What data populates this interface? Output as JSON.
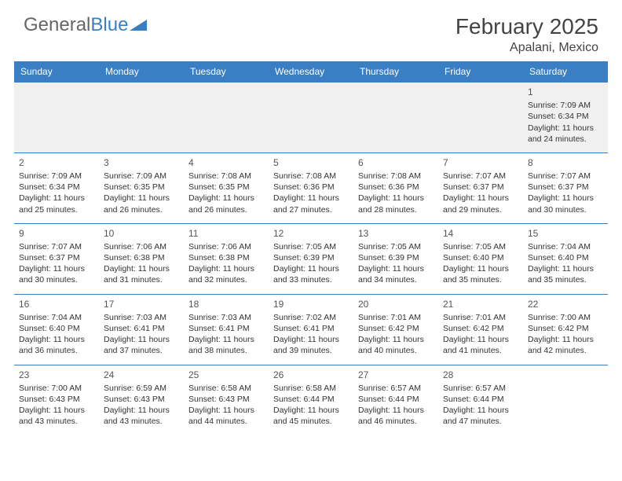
{
  "logo": {
    "text1": "General",
    "text2": "Blue"
  },
  "header": {
    "title": "February 2025",
    "location": "Apalani, Mexico"
  },
  "colors": {
    "primary": "#3a7fc4",
    "textDark": "#333333",
    "textMid": "#555555",
    "bgAlt": "#f0f0f0"
  },
  "dayNames": [
    "Sunday",
    "Monday",
    "Tuesday",
    "Wednesday",
    "Thursday",
    "Friday",
    "Saturday"
  ],
  "weeks": [
    [
      null,
      null,
      null,
      null,
      null,
      null,
      {
        "n": "1",
        "sr": "Sunrise: 7:09 AM",
        "ss": "Sunset: 6:34 PM",
        "d1": "Daylight: 11 hours",
        "d2": "and 24 minutes."
      }
    ],
    [
      {
        "n": "2",
        "sr": "Sunrise: 7:09 AM",
        "ss": "Sunset: 6:34 PM",
        "d1": "Daylight: 11 hours",
        "d2": "and 25 minutes."
      },
      {
        "n": "3",
        "sr": "Sunrise: 7:09 AM",
        "ss": "Sunset: 6:35 PM",
        "d1": "Daylight: 11 hours",
        "d2": "and 26 minutes."
      },
      {
        "n": "4",
        "sr": "Sunrise: 7:08 AM",
        "ss": "Sunset: 6:35 PM",
        "d1": "Daylight: 11 hours",
        "d2": "and 26 minutes."
      },
      {
        "n": "5",
        "sr": "Sunrise: 7:08 AM",
        "ss": "Sunset: 6:36 PM",
        "d1": "Daylight: 11 hours",
        "d2": "and 27 minutes."
      },
      {
        "n": "6",
        "sr": "Sunrise: 7:08 AM",
        "ss": "Sunset: 6:36 PM",
        "d1": "Daylight: 11 hours",
        "d2": "and 28 minutes."
      },
      {
        "n": "7",
        "sr": "Sunrise: 7:07 AM",
        "ss": "Sunset: 6:37 PM",
        "d1": "Daylight: 11 hours",
        "d2": "and 29 minutes."
      },
      {
        "n": "8",
        "sr": "Sunrise: 7:07 AM",
        "ss": "Sunset: 6:37 PM",
        "d1": "Daylight: 11 hours",
        "d2": "and 30 minutes."
      }
    ],
    [
      {
        "n": "9",
        "sr": "Sunrise: 7:07 AM",
        "ss": "Sunset: 6:37 PM",
        "d1": "Daylight: 11 hours",
        "d2": "and 30 minutes."
      },
      {
        "n": "10",
        "sr": "Sunrise: 7:06 AM",
        "ss": "Sunset: 6:38 PM",
        "d1": "Daylight: 11 hours",
        "d2": "and 31 minutes."
      },
      {
        "n": "11",
        "sr": "Sunrise: 7:06 AM",
        "ss": "Sunset: 6:38 PM",
        "d1": "Daylight: 11 hours",
        "d2": "and 32 minutes."
      },
      {
        "n": "12",
        "sr": "Sunrise: 7:05 AM",
        "ss": "Sunset: 6:39 PM",
        "d1": "Daylight: 11 hours",
        "d2": "and 33 minutes."
      },
      {
        "n": "13",
        "sr": "Sunrise: 7:05 AM",
        "ss": "Sunset: 6:39 PM",
        "d1": "Daylight: 11 hours",
        "d2": "and 34 minutes."
      },
      {
        "n": "14",
        "sr": "Sunrise: 7:05 AM",
        "ss": "Sunset: 6:40 PM",
        "d1": "Daylight: 11 hours",
        "d2": "and 35 minutes."
      },
      {
        "n": "15",
        "sr": "Sunrise: 7:04 AM",
        "ss": "Sunset: 6:40 PM",
        "d1": "Daylight: 11 hours",
        "d2": "and 35 minutes."
      }
    ],
    [
      {
        "n": "16",
        "sr": "Sunrise: 7:04 AM",
        "ss": "Sunset: 6:40 PM",
        "d1": "Daylight: 11 hours",
        "d2": "and 36 minutes."
      },
      {
        "n": "17",
        "sr": "Sunrise: 7:03 AM",
        "ss": "Sunset: 6:41 PM",
        "d1": "Daylight: 11 hours",
        "d2": "and 37 minutes."
      },
      {
        "n": "18",
        "sr": "Sunrise: 7:03 AM",
        "ss": "Sunset: 6:41 PM",
        "d1": "Daylight: 11 hours",
        "d2": "and 38 minutes."
      },
      {
        "n": "19",
        "sr": "Sunrise: 7:02 AM",
        "ss": "Sunset: 6:41 PM",
        "d1": "Daylight: 11 hours",
        "d2": "and 39 minutes."
      },
      {
        "n": "20",
        "sr": "Sunrise: 7:01 AM",
        "ss": "Sunset: 6:42 PM",
        "d1": "Daylight: 11 hours",
        "d2": "and 40 minutes."
      },
      {
        "n": "21",
        "sr": "Sunrise: 7:01 AM",
        "ss": "Sunset: 6:42 PM",
        "d1": "Daylight: 11 hours",
        "d2": "and 41 minutes."
      },
      {
        "n": "22",
        "sr": "Sunrise: 7:00 AM",
        "ss": "Sunset: 6:42 PM",
        "d1": "Daylight: 11 hours",
        "d2": "and 42 minutes."
      }
    ],
    [
      {
        "n": "23",
        "sr": "Sunrise: 7:00 AM",
        "ss": "Sunset: 6:43 PM",
        "d1": "Daylight: 11 hours",
        "d2": "and 43 minutes."
      },
      {
        "n": "24",
        "sr": "Sunrise: 6:59 AM",
        "ss": "Sunset: 6:43 PM",
        "d1": "Daylight: 11 hours",
        "d2": "and 43 minutes."
      },
      {
        "n": "25",
        "sr": "Sunrise: 6:58 AM",
        "ss": "Sunset: 6:43 PM",
        "d1": "Daylight: 11 hours",
        "d2": "and 44 minutes."
      },
      {
        "n": "26",
        "sr": "Sunrise: 6:58 AM",
        "ss": "Sunset: 6:44 PM",
        "d1": "Daylight: 11 hours",
        "d2": "and 45 minutes."
      },
      {
        "n": "27",
        "sr": "Sunrise: 6:57 AM",
        "ss": "Sunset: 6:44 PM",
        "d1": "Daylight: 11 hours",
        "d2": "and 46 minutes."
      },
      {
        "n": "28",
        "sr": "Sunrise: 6:57 AM",
        "ss": "Sunset: 6:44 PM",
        "d1": "Daylight: 11 hours",
        "d2": "and 47 minutes."
      },
      null
    ]
  ]
}
